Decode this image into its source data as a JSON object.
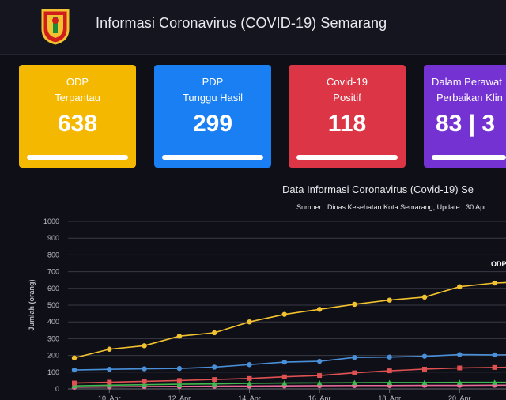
{
  "header": {
    "title": "Informasi Coronavirus (COVID-19) Semarang",
    "logo_icon": "semarang-city-emblem-icon"
  },
  "cards": [
    {
      "line1": "ODP",
      "line2": "Terpantau",
      "value": "638",
      "color": "#f5b800"
    },
    {
      "line1": "PDP",
      "line2": "Tunggu Hasil",
      "value": "299",
      "color": "#1a7ff3"
    },
    {
      "line1": "Covid-19",
      "line2": "Positif",
      "value": "118",
      "color": "#dc3545"
    },
    {
      "line1": "Dalam Perawat",
      "line2": "Perbaikan Klin",
      "value": "83 | 3",
      "color": "#7432d3"
    }
  ],
  "chart": {
    "title": "Data Informasi Coronavirus (Covid-19) Se",
    "subtitle": "Sumber : Dinas Kesehatan Kota Semarang, Update : 30 Apr"
  },
  "chart_data": {
    "type": "line",
    "ylabel": "Jumlah (orang)",
    "ylim": [
      0,
      1000
    ],
    "yticks": [
      0,
      100,
      200,
      300,
      400,
      500,
      600,
      700,
      800,
      900,
      1000
    ],
    "xticks": [
      "10. Apr",
      "12. Apr",
      "14. Apr",
      "16. Apr",
      "18. Apr",
      "20. Apr"
    ],
    "x": [
      "9. Apr",
      "10. Apr",
      "11. Apr",
      "12. Apr",
      "13. Apr",
      "14. Apr",
      "15. Apr",
      "16. Apr",
      "17. Apr",
      "18. Apr",
      "19. Apr",
      "20. Apr",
      "21. Apr",
      "22. Apr"
    ],
    "series": [
      {
        "name": "ODP",
        "color": "#f2c230",
        "marker": "circle",
        "label_shown": true,
        "values": [
          185,
          237,
          258,
          315,
          335,
          400,
          445,
          475,
          505,
          530,
          548,
          610,
          632,
          640
        ]
      },
      {
        "name": "",
        "color": "#4a90d9",
        "marker": "circle",
        "values": [
          113,
          117,
          120,
          122,
          130,
          145,
          160,
          165,
          188,
          190,
          195,
          205,
          203,
          205
        ]
      },
      {
        "name": "",
        "color": "#e05252",
        "marker": "square",
        "values": [
          35,
          40,
          45,
          50,
          56,
          62,
          72,
          80,
          96,
          108,
          118,
          125,
          128,
          130
        ]
      },
      {
        "name": "",
        "color": "#3fb950",
        "marker": "triangle",
        "values": [
          18,
          22,
          25,
          28,
          30,
          33,
          35,
          36,
          37,
          38,
          38,
          39,
          39,
          40
        ]
      },
      {
        "name": "",
        "color": "#e86b9a",
        "marker": "circle",
        "values": [
          10,
          12,
          14,
          15,
          16,
          17,
          18,
          19,
          20,
          20,
          21,
          21,
          22,
          22
        ]
      }
    ]
  }
}
